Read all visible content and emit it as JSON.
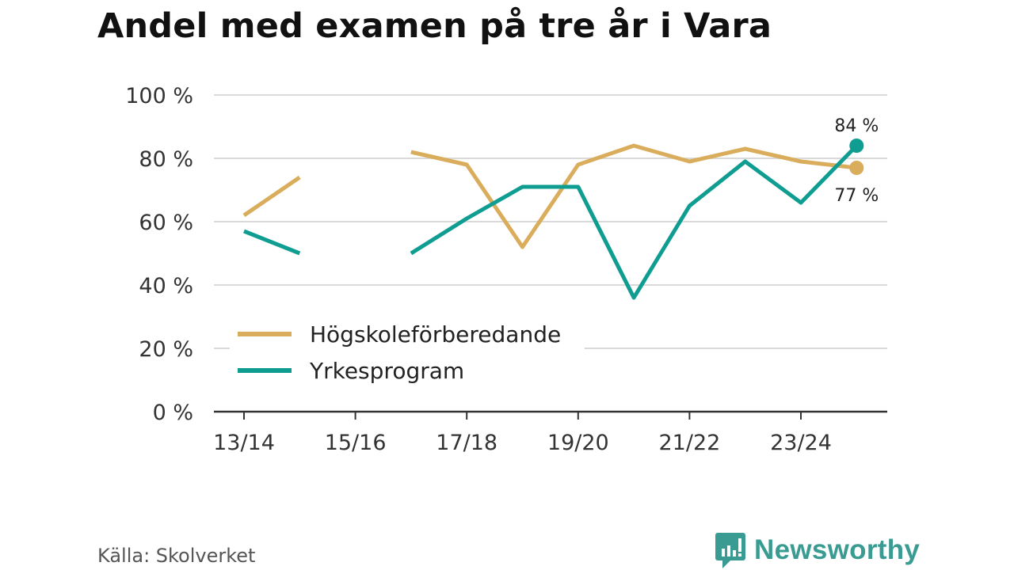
{
  "title": "Andel med examen på tre år i Vara",
  "source": "Källa: Skolverket",
  "brand": "Newsworthy",
  "colors": {
    "hogskole": "#d9ad5b",
    "yrkes": "#0f9d92",
    "grid": "#d9d9d9",
    "axis": "#333333",
    "brand": "#3a9b92"
  },
  "chart_data": {
    "type": "line",
    "categories": [
      "13/14",
      "14/15",
      "15/16",
      "16/17",
      "17/18",
      "18/19",
      "19/20",
      "20/21",
      "21/22",
      "22/23",
      "23/24",
      "24/25"
    ],
    "tick_labels": [
      "13/14",
      "15/16",
      "17/18",
      "19/20",
      "21/22",
      "23/24"
    ],
    "y_tick_labels": [
      "0 %",
      "20 %",
      "40 %",
      "60 %",
      "80 %",
      "100 %"
    ],
    "ylim": [
      0,
      100
    ],
    "y_ticks": [
      0,
      20,
      40,
      60,
      80,
      100
    ],
    "series": [
      {
        "name": "Högskoleförberedande",
        "color_key": "hogskole",
        "values": [
          62,
          74,
          null,
          82,
          78,
          52,
          78,
          84,
          79,
          83,
          79,
          77
        ],
        "end_label": "77 %"
      },
      {
        "name": "Yrkesprogram",
        "color_key": "yrkes",
        "values": [
          57,
          50,
          null,
          50,
          61,
          71,
          71,
          36,
          65,
          79,
          66,
          84
        ],
        "end_label": "84 %"
      }
    ],
    "legend_position": "bottom-left"
  }
}
